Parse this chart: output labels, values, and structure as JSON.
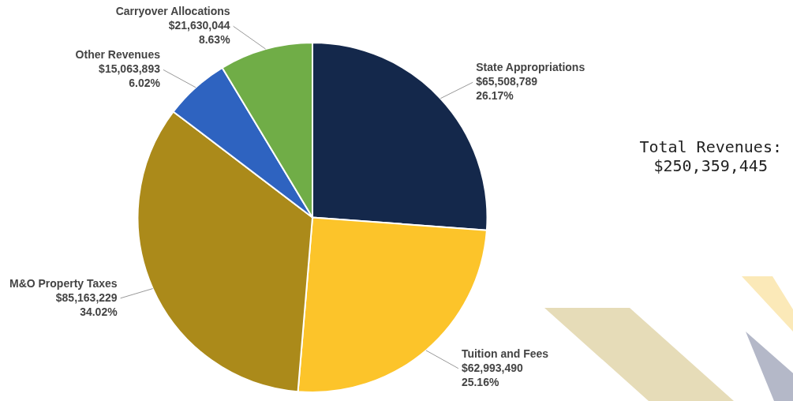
{
  "chart_data": {
    "type": "pie",
    "categories": [
      "State Appropriations",
      "Tuition and Fees",
      "M&O Property Taxes",
      "Other Revenues",
      "Carryover Allocations"
    ],
    "values": [
      65508789,
      62993490,
      85163229,
      15063893,
      21630044
    ],
    "colors": [
      "#14284b",
      "#fcc42a",
      "#ab8a1a",
      "#2e63c0",
      "#70ad47"
    ],
    "value_labels": [
      "$65,508,789\n26.17%",
      "$62,993,490\n25.16%",
      "$85,163,229\n34.02%",
      "$15,063,893\n6.02%",
      "$21,630,044\n8.63%"
    ],
    "annotations": [
      "Total Revenues:\n$250,359,445"
    ],
    "legend": false
  }
}
